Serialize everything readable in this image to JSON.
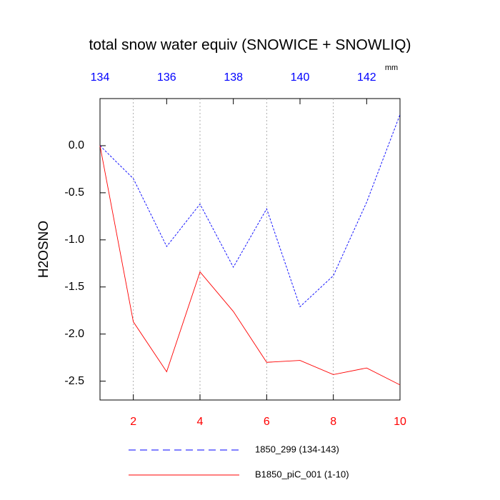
{
  "chart_data": {
    "type": "line",
    "title": "total snow water equiv (SNOWICE + SNOWLIQ)",
    "ylabel": "H2OSNO",
    "x2unit": "mm",
    "x": [
      1,
      2,
      3,
      4,
      5,
      6,
      7,
      8,
      9,
      10
    ],
    "xlim": [
      1,
      10
    ],
    "xticks": [
      2,
      4,
      6,
      8,
      10
    ],
    "xtick_color": "#ff0000",
    "x2lim": [
      134,
      143
    ],
    "x2ticks": [
      134,
      136,
      138,
      140,
      142
    ],
    "x2tick_color": "#0000ff",
    "ylim": [
      -2.7,
      0.5
    ],
    "yticks": [
      {
        "value": 0,
        "label": "0.0"
      },
      -0.5,
      {
        "value": -1,
        "label": "-1.0"
      },
      -1.5,
      {
        "value": -2,
        "label": "-2.0"
      },
      -2.5
    ],
    "grid": true,
    "series": [
      {
        "name": "1850_299 (134-143)",
        "color": "#0000ff",
        "dash": true,
        "values": [
          0.0,
          -0.35,
          -1.07,
          -0.62,
          -1.29,
          -0.67,
          -1.71,
          -1.38,
          -0.6,
          0.33
        ]
      },
      {
        "name": "B1850_piC_001 (1-10)",
        "color": "#ff0000",
        "dash": false,
        "values": [
          0.0,
          -1.87,
          -2.4,
          -1.34,
          -1.76,
          -2.3,
          -2.28,
          -2.43,
          -2.36,
          -2.54
        ]
      }
    ]
  }
}
